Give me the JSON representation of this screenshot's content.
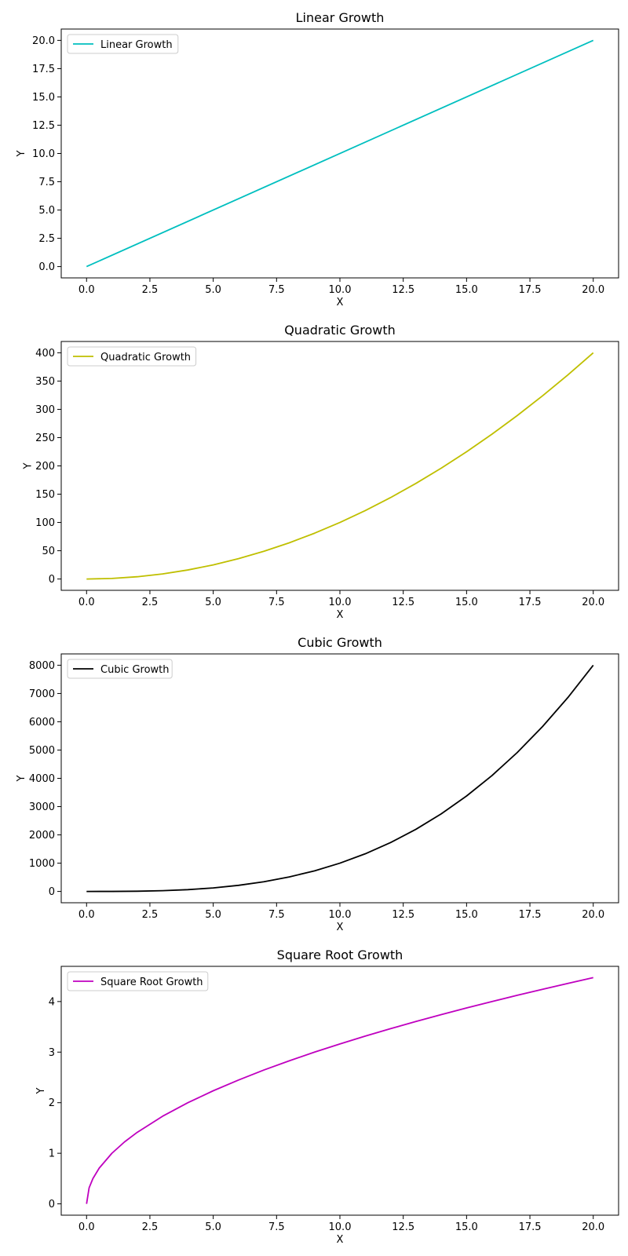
{
  "chart_data": [
    {
      "type": "line",
      "title": "Linear Growth",
      "xlabel": "X",
      "ylabel": "Y",
      "xlim": [
        -1.0,
        21.0
      ],
      "ylim": [
        -1.0,
        21.0
      ],
      "xticks": [
        0,
        2.5,
        5,
        7.5,
        10,
        12.5,
        15,
        17.5,
        20
      ],
      "xtick_labels": [
        "0.0",
        "2.5",
        "5.0",
        "7.5",
        "10.0",
        "12.5",
        "15.0",
        "17.5",
        "20.0"
      ],
      "yticks": [
        0,
        2.5,
        5,
        7.5,
        10,
        12.5,
        15,
        17.5,
        20
      ],
      "ytick_labels": [
        "0.0",
        "2.5",
        "5.0",
        "7.5",
        "10.0",
        "12.5",
        "15.0",
        "17.5",
        "20.0"
      ],
      "grid": false,
      "legend_position": "upper-left",
      "series": [
        {
          "name": "Linear Growth",
          "color": "#00bfbf",
          "x": [
            0,
            20
          ],
          "y": [
            0,
            20
          ]
        }
      ]
    },
    {
      "type": "line",
      "title": "Quadratic Growth",
      "xlabel": "X",
      "ylabel": "Y",
      "xlim": [
        -1.0,
        21.0
      ],
      "ylim": [
        -20,
        420
      ],
      "xticks": [
        0,
        2.5,
        5,
        7.5,
        10,
        12.5,
        15,
        17.5,
        20
      ],
      "xtick_labels": [
        "0.0",
        "2.5",
        "5.0",
        "7.5",
        "10.0",
        "12.5",
        "15.0",
        "17.5",
        "20.0"
      ],
      "yticks": [
        0,
        50,
        100,
        150,
        200,
        250,
        300,
        350,
        400
      ],
      "ytick_labels": [
        "0",
        "50",
        "100",
        "150",
        "200",
        "250",
        "300",
        "350",
        "400"
      ],
      "grid": false,
      "legend_position": "upper-left",
      "series": [
        {
          "name": "Quadratic Growth",
          "color": "#bfbf00",
          "x": [
            0,
            1,
            2,
            3,
            4,
            5,
            6,
            7,
            8,
            9,
            10,
            11,
            12,
            13,
            14,
            15,
            16,
            17,
            18,
            19,
            20
          ],
          "y": [
            0,
            1,
            4,
            9,
            16,
            25,
            36,
            49,
            64,
            81,
            100,
            121,
            144,
            169,
            196,
            225,
            256,
            289,
            324,
            361,
            400
          ]
        }
      ]
    },
    {
      "type": "line",
      "title": "Cubic Growth",
      "xlabel": "X",
      "ylabel": "Y",
      "xlim": [
        -1.0,
        21.0
      ],
      "ylim": [
        -400,
        8400
      ],
      "xticks": [
        0,
        2.5,
        5,
        7.5,
        10,
        12.5,
        15,
        17.5,
        20
      ],
      "xtick_labels": [
        "0.0",
        "2.5",
        "5.0",
        "7.5",
        "10.0",
        "12.5",
        "15.0",
        "17.5",
        "20.0"
      ],
      "yticks": [
        0,
        1000,
        2000,
        3000,
        4000,
        5000,
        6000,
        7000,
        8000
      ],
      "ytick_labels": [
        "0",
        "1000",
        "2000",
        "3000",
        "4000",
        "5000",
        "6000",
        "7000",
        "8000"
      ],
      "grid": false,
      "legend_position": "upper-left",
      "series": [
        {
          "name": "Cubic Growth",
          "color": "#000000",
          "x": [
            0,
            1,
            2,
            3,
            4,
            5,
            6,
            7,
            8,
            9,
            10,
            11,
            12,
            13,
            14,
            15,
            16,
            17,
            18,
            19,
            20
          ],
          "y": [
            0,
            1,
            8,
            27,
            64,
            125,
            216,
            343,
            512,
            729,
            1000,
            1331,
            1728,
            2197,
            2744,
            3375,
            4096,
            4913,
            5832,
            6859,
            8000
          ]
        }
      ]
    },
    {
      "type": "line",
      "title": "Square Root Growth",
      "xlabel": "X",
      "ylabel": "Y",
      "xlim": [
        -1.0,
        21.0
      ],
      "ylim": [
        -0.224,
        4.696
      ],
      "xticks": [
        0,
        2.5,
        5,
        7.5,
        10,
        12.5,
        15,
        17.5,
        20
      ],
      "xtick_labels": [
        "0.0",
        "2.5",
        "5.0",
        "7.5",
        "10.0",
        "12.5",
        "15.0",
        "17.5",
        "20.0"
      ],
      "yticks": [
        0,
        1,
        2,
        3,
        4
      ],
      "ytick_labels": [
        "0",
        "1",
        "2",
        "3",
        "4"
      ],
      "grid": false,
      "legend_position": "upper-left",
      "series": [
        {
          "name": "Square Root Growth",
          "color": "#bf00bf",
          "x": [
            0,
            0.1,
            0.25,
            0.5,
            1,
            1.5,
            2,
            3,
            4,
            5,
            6,
            7,
            8,
            9,
            10,
            11,
            12,
            13,
            14,
            15,
            16,
            17,
            18,
            19,
            20
          ],
          "y": [
            0,
            0.316,
            0.5,
            0.707,
            1.0,
            1.225,
            1.414,
            1.732,
            2.0,
            2.236,
            2.449,
            2.646,
            2.828,
            3.0,
            3.162,
            3.317,
            3.464,
            3.606,
            3.742,
            3.873,
            4.0,
            4.123,
            4.243,
            4.359,
            4.472
          ]
        }
      ]
    }
  ]
}
